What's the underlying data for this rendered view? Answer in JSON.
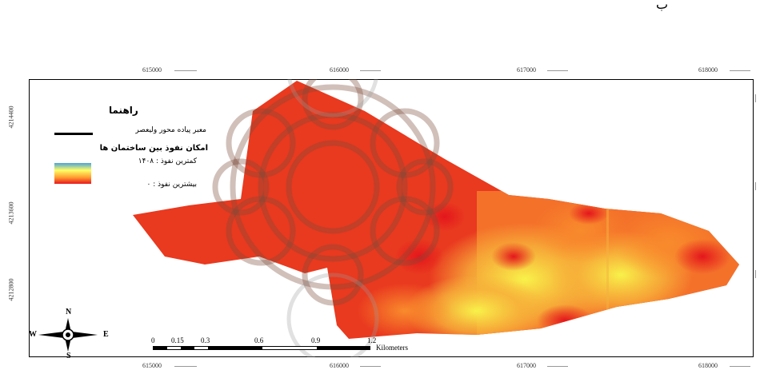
{
  "header_mark": "ب",
  "x_ticks": [
    "615000",
    "616000",
    "617000",
    "618000"
  ],
  "y_ticks": [
    "4214400",
    "4213600",
    "4212800"
  ],
  "legend": {
    "title": "راهنما",
    "line_label": "معبر پیاده محور ولیعصر",
    "raster_heading": "امکان نفوذ بین ساختمان ها",
    "min_label": "کمترین نفوذ : ۱۴۰۸",
    "max_label": "بیشترین نفوذ : ۰",
    "ramp_colors": [
      "#4aa3d9",
      "#ffff66",
      "#ff9a2e",
      "#e8161e"
    ],
    "line_color": "#000000"
  },
  "scale_bar": {
    "labels": [
      "0",
      "0.15",
      "0.3",
      "0.6",
      "0.9",
      "1.2"
    ],
    "unit": "Kilometers"
  },
  "north_arrow": {
    "n": "N",
    "s": "S",
    "e": "E",
    "w": "W"
  },
  "colors": {
    "high_red": "#e8261e",
    "mid_orange": "#f77a2a",
    "low_yellow": "#f5f04a",
    "watermark": "#888888"
  }
}
